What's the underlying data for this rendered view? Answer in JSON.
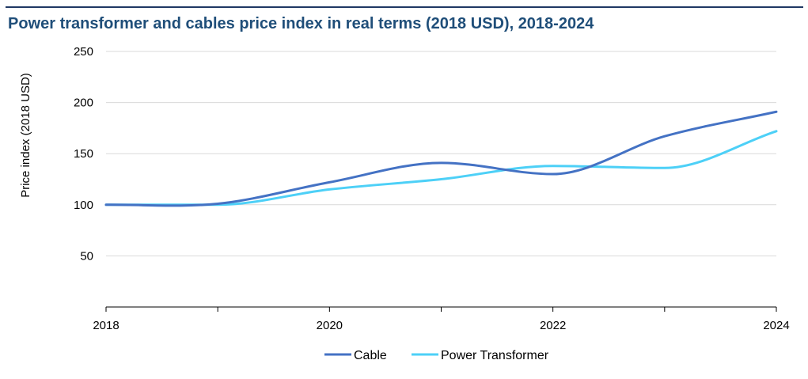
{
  "chart_data": {
    "type": "line",
    "title": "Power transformer and cables price index in real terms (2018 USD), 2018-2024",
    "xlabel": "",
    "ylabel": "Price index (2018 USD)",
    "x": [
      2018,
      2019,
      2020,
      2021,
      2022,
      2023,
      2024
    ],
    "x_tick_labels": [
      "2018",
      "2020",
      "2022",
      "2024"
    ],
    "y_tick_labels": [
      "50",
      "100",
      "150",
      "200",
      "250"
    ],
    "ylim": [
      0,
      250
    ],
    "grid": true,
    "legend_position": "bottom",
    "series": [
      {
        "name": "Cable",
        "color": "#4472c4",
        "values": [
          100,
          101,
          122,
          141,
          130,
          167,
          191
        ]
      },
      {
        "name": "Power Transformer",
        "color": "#4dd0f7",
        "values": [
          100,
          100,
          115,
          125,
          138,
          136,
          172
        ]
      }
    ]
  }
}
